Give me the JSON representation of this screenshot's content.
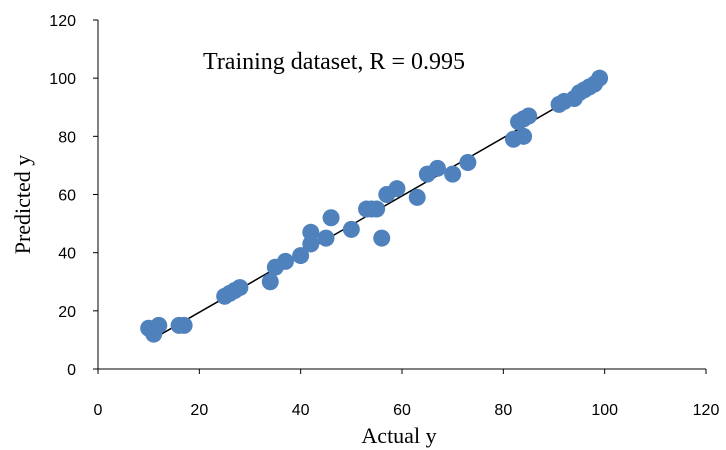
{
  "chart_data": {
    "type": "scatter",
    "title": "",
    "xlabel": "Actual y",
    "ylabel": "Predicted y",
    "annotation": "Training dataset, R = 0.995",
    "xlim": [
      0,
      120
    ],
    "ylim": [
      0,
      120
    ],
    "xticks": [
      0,
      20,
      40,
      60,
      80,
      100,
      120
    ],
    "yticks": [
      0,
      20,
      40,
      60,
      80,
      100,
      120
    ],
    "grid": false,
    "legend": "none",
    "colors": {
      "marker": "#4f81bd",
      "trendline": "#000000",
      "axis": "#000000"
    },
    "series": [
      {
        "points": [
          [
            10,
            14
          ],
          [
            11,
            12
          ],
          [
            12,
            15
          ],
          [
            16,
            15
          ],
          [
            17,
            15
          ],
          [
            25,
            25
          ],
          [
            26,
            26
          ],
          [
            27,
            27
          ],
          [
            28,
            28
          ],
          [
            34,
            30
          ],
          [
            35,
            35
          ],
          [
            37,
            37
          ],
          [
            40,
            39
          ],
          [
            42,
            43
          ],
          [
            42,
            47
          ],
          [
            45,
            45
          ],
          [
            46,
            52
          ],
          [
            50,
            48
          ],
          [
            53,
            55
          ],
          [
            54,
            55
          ],
          [
            55,
            55
          ],
          [
            56,
            45
          ],
          [
            57,
            60
          ],
          [
            59,
            62
          ],
          [
            63,
            59
          ],
          [
            65,
            67
          ],
          [
            67,
            69
          ],
          [
            70,
            67
          ],
          [
            73,
            71
          ],
          [
            82,
            79
          ],
          [
            83,
            85
          ],
          [
            84,
            86
          ],
          [
            84,
            80
          ],
          [
            85,
            87
          ],
          [
            91,
            91
          ],
          [
            92,
            92
          ],
          [
            94,
            93
          ],
          [
            95,
            95
          ],
          [
            96,
            96
          ],
          [
            97,
            97
          ],
          [
            98,
            98
          ],
          [
            99,
            100
          ]
        ]
      }
    ],
    "trendline": {
      "x": [
        11,
        99
      ],
      "y": [
        10.5,
        98.5
      ]
    }
  }
}
